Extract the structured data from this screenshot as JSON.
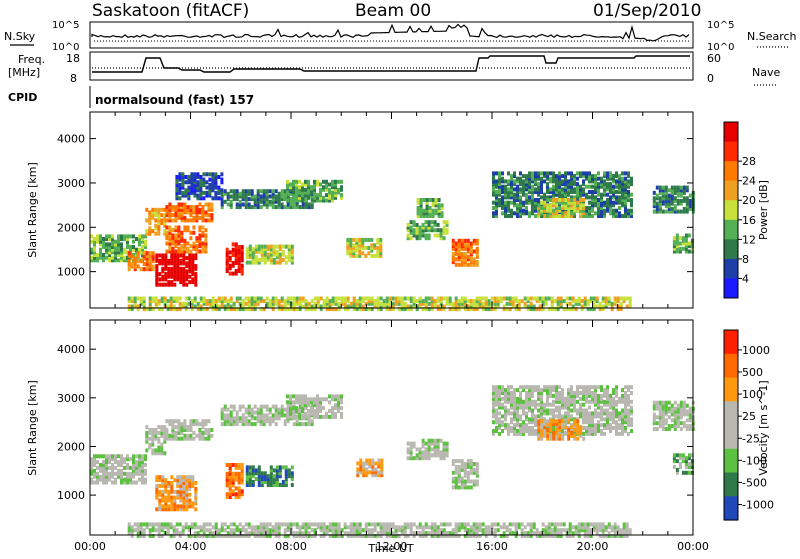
{
  "header": {
    "station": "Saskatoon (fitACF)",
    "beam": "Beam 00",
    "date": "01/Sep/2010"
  },
  "noise_panel": {
    "left_label": "N.Sky",
    "right_label": "N.Search",
    "left_ticks": [
      "10^5",
      "10^0"
    ],
    "right_ticks": [
      "10^5",
      "10^0"
    ]
  },
  "freq_panel": {
    "left_label_line1": "Freq.",
    "left_label_line2": "[MHz]",
    "right_label": "Nave",
    "left_ticks": [
      "18",
      "8"
    ],
    "right_ticks": [
      "60",
      "0"
    ]
  },
  "cpid_panel": {
    "label": "CPID",
    "text": "normalsound (fast) 157"
  },
  "colors": {
    "power_scale": [
      "#1a1aff",
      "#1e3fa8",
      "#2f7a4a",
      "#55b055",
      "#c8e03a",
      "#f0a020",
      "#ff7a00",
      "#ff2a00",
      "#e60000"
    ],
    "velocity_scale": [
      "#2048b8",
      "#2f7a4a",
      "#5cc040",
      "#b8b8b0",
      "#b8b8b0",
      "#ff9a10",
      "#ff6a00",
      "#ff2000"
    ]
  },
  "chart_data": [
    {
      "type": "heatmap",
      "name": "power",
      "xlabel": "",
      "ylabel": "Slant Range [km]",
      "xlim": [
        0,
        24
      ],
      "ylim": [
        180,
        4600
      ],
      "yticks": [
        "1000",
        "2000",
        "3000",
        "4000"
      ],
      "colorbar_label": "Power [dB]",
      "colorbar_ticks": [
        "4",
        "8",
        "12",
        "16",
        "20",
        "24",
        "28"
      ],
      "regions": [
        {
          "t0": 0.0,
          "t1": 2.2,
          "r0": 1300,
          "r1": 1900,
          "v": 3
        },
        {
          "t0": 1.5,
          "t1": 2.5,
          "r0": 1100,
          "r1": 1500,
          "v": 6
        },
        {
          "t0": 2.2,
          "t1": 3.0,
          "r0": 1900,
          "r1": 2500,
          "v": 5
        },
        {
          "t0": 2.6,
          "t1": 4.2,
          "r0": 750,
          "r1": 1450,
          "v": 9
        },
        {
          "t0": 3.0,
          "t1": 4.6,
          "r0": 1500,
          "r1": 2100,
          "v": 6
        },
        {
          "t0": 3.0,
          "t1": 4.8,
          "r0": 2200,
          "r1": 2600,
          "v": 6
        },
        {
          "t0": 3.4,
          "t1": 5.2,
          "r0": 2700,
          "r1": 3300,
          "v": 1
        },
        {
          "t0": 5.4,
          "t1": 6.0,
          "r0": 1000,
          "r1": 1700,
          "v": 8
        },
        {
          "t0": 5.2,
          "t1": 8.8,
          "r0": 2500,
          "r1": 2900,
          "v": 2
        },
        {
          "t0": 6.2,
          "t1": 8.0,
          "r0": 1250,
          "r1": 1650,
          "v": 4
        },
        {
          "t0": 7.8,
          "t1": 10.0,
          "r0": 2650,
          "r1": 3100,
          "v": 3
        },
        {
          "t0": 10.2,
          "t1": 11.6,
          "r0": 1400,
          "r1": 1800,
          "v": 4
        },
        {
          "t0": 12.6,
          "t1": 14.2,
          "r0": 1800,
          "r1": 2200,
          "v": 3
        },
        {
          "t0": 13.0,
          "t1": 14.0,
          "r0": 2300,
          "r1": 2700,
          "v": 3
        },
        {
          "t0": 14.4,
          "t1": 15.4,
          "r0": 1200,
          "r1": 1750,
          "v": 6
        },
        {
          "t0": 16.0,
          "t1": 21.6,
          "r0": 2300,
          "r1": 3300,
          "v": 2
        },
        {
          "t0": 17.8,
          "t1": 19.6,
          "r0": 2300,
          "r1": 2700,
          "v": 4
        },
        {
          "t0": 22.4,
          "t1": 24.0,
          "r0": 2400,
          "r1": 3000,
          "v": 2
        },
        {
          "t0": 23.2,
          "t1": 24.0,
          "r0": 1500,
          "r1": 1900,
          "v": 3
        },
        {
          "t0": 1.5,
          "t1": 21.5,
          "r0": 200,
          "r1": 450,
          "v": 4
        }
      ]
    },
    {
      "type": "heatmap",
      "name": "velocity",
      "xlabel": "Time UT",
      "ylabel": "Slant Range [km]",
      "xlim": [
        0,
        24
      ],
      "ylim": [
        180,
        4600
      ],
      "xticks": [
        "00:00",
        "04:00",
        "08:00",
        "12:00",
        "16:00",
        "20:00",
        "00:00"
      ],
      "yticks": [
        "1000",
        "2000",
        "3000",
        "4000"
      ],
      "colorbar_label": "Velocity [m s^-1]",
      "colorbar_ticks": [
        "1000",
        "500",
        "100",
        "25",
        "-25",
        "-100",
        "-500",
        "-1000"
      ],
      "regions": [
        {
          "t0": 0.0,
          "t1": 2.2,
          "r0": 1300,
          "r1": 1900,
          "v": 3
        },
        {
          "t0": 2.2,
          "t1": 3.0,
          "r0": 1900,
          "r1": 2500,
          "v": 3
        },
        {
          "t0": 2.6,
          "t1": 4.2,
          "r0": 750,
          "r1": 1450,
          "v": 5
        },
        {
          "t0": 3.0,
          "t1": 4.8,
          "r0": 2200,
          "r1": 2600,
          "v": 3
        },
        {
          "t0": 5.4,
          "t1": 6.0,
          "r0": 1000,
          "r1": 1700,
          "v": 6
        },
        {
          "t0": 5.2,
          "t1": 8.8,
          "r0": 2500,
          "r1": 2900,
          "v": 3
        },
        {
          "t0": 6.2,
          "t1": 8.0,
          "r0": 1250,
          "r1": 1650,
          "v": 1
        },
        {
          "t0": 7.8,
          "t1": 10.0,
          "r0": 2650,
          "r1": 3100,
          "v": 3
        },
        {
          "t0": 10.6,
          "t1": 11.6,
          "r0": 1450,
          "r1": 1800,
          "v": 5
        },
        {
          "t0": 12.6,
          "t1": 14.2,
          "r0": 1800,
          "r1": 2200,
          "v": 3
        },
        {
          "t0": 14.4,
          "t1": 15.4,
          "r0": 1200,
          "r1": 1750,
          "v": 3
        },
        {
          "t0": 16.0,
          "t1": 21.6,
          "r0": 2300,
          "r1": 3300,
          "v": 3
        },
        {
          "t0": 17.8,
          "t1": 19.6,
          "r0": 2200,
          "r1": 2600,
          "v": 5
        },
        {
          "t0": 22.4,
          "t1": 24.0,
          "r0": 2400,
          "r1": 3000,
          "v": 3
        },
        {
          "t0": 23.2,
          "t1": 24.0,
          "r0": 1500,
          "r1": 1900,
          "v": 2
        },
        {
          "t0": 1.5,
          "t1": 21.5,
          "r0": 200,
          "r1": 450,
          "v": 3
        }
      ]
    }
  ]
}
